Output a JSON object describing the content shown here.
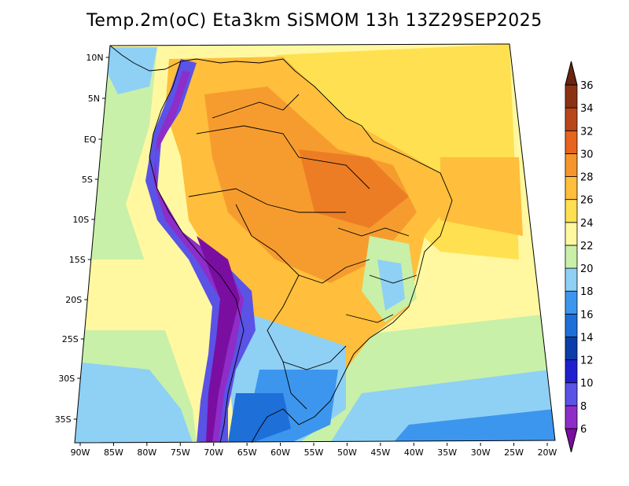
{
  "title": "Temp.2m(oC) Eta3km SiSMOM 13h 13Z29SEP2025",
  "lat_ticks": [
    "10N",
    "5N",
    "EQ",
    "5S",
    "10S",
    "15S",
    "20S",
    "25S",
    "30S",
    "35S"
  ],
  "lon_ticks": [
    "90W",
    "85W",
    "80W",
    "75W",
    "70W",
    "65W",
    "60W",
    "55W",
    "50W",
    "45W",
    "40W",
    "35W",
    "30W",
    "25W",
    "20W"
  ],
  "colorbar": {
    "labels": [
      "6",
      "8",
      "10",
      "12",
      "14",
      "16",
      "18",
      "20",
      "22",
      "24",
      "26",
      "28",
      "30",
      "32",
      "34",
      "36"
    ],
    "colors": [
      "#7a0ea0",
      "#8e2dc8",
      "#5b52e6",
      "#1f1fd0",
      "#0b3ea8",
      "#1e6fd8",
      "#3c96ee",
      "#8fd0f5",
      "#c8f0a8",
      "#fff8a0",
      "#ffe050",
      "#ffbe3c",
      "#f5962c",
      "#e6641e",
      "#b8461a",
      "#8c3214",
      "#6a2410"
    ]
  },
  "chart_data": {
    "type": "heatmap",
    "variable": "Temp.2m(oC)",
    "model": "Eta3km SiSMOM",
    "forecast_hour": "13h",
    "run": "13Z29SEP2025",
    "lon_range": [
      "90W",
      "20W"
    ],
    "lat_range": [
      "10N",
      "35S"
    ],
    "color_levels": [
      6,
      8,
      10,
      12,
      14,
      16,
      18,
      20,
      22,
      24,
      26,
      28,
      30,
      32,
      34,
      36
    ]
  }
}
